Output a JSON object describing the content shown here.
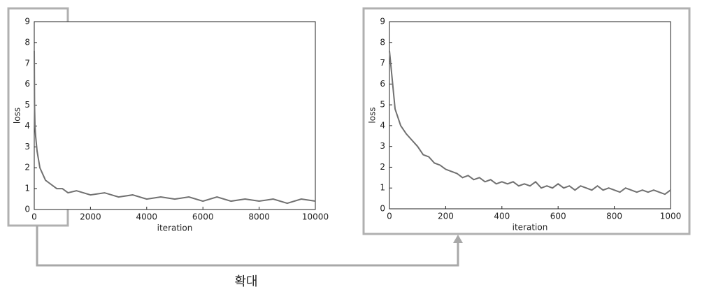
{
  "chart_data": [
    {
      "type": "line",
      "xlabel": "iteration",
      "ylabel": "loss",
      "color": "#707070",
      "xlim": [
        0,
        10000
      ],
      "ylim": [
        0,
        9
      ],
      "xticks": [
        0,
        2000,
        4000,
        6000,
        8000,
        10000
      ],
      "yticks": [
        0,
        1,
        2,
        3,
        4,
        5,
        6,
        7,
        8,
        9
      ],
      "x": [
        0,
        10,
        25,
        50,
        100,
        150,
        200,
        300,
        400,
        600,
        800,
        1000,
        1200,
        1500,
        2000,
        2500,
        3000,
        3500,
        4000,
        4500,
        5000,
        5500,
        6000,
        6500,
        7000,
        7500,
        8000,
        8500,
        9000,
        9500,
        10000
      ],
      "values": [
        7.6,
        5.0,
        4.0,
        3.5,
        2.8,
        2.4,
        2.0,
        1.7,
        1.4,
        1.2,
        1.0,
        1.0,
        0.8,
        0.9,
        0.7,
        0.8,
        0.6,
        0.7,
        0.5,
        0.6,
        0.5,
        0.6,
        0.4,
        0.6,
        0.4,
        0.5,
        0.4,
        0.5,
        0.3,
        0.5,
        0.4
      ]
    },
    {
      "type": "line",
      "xlabel": "iteration",
      "ylabel": "loss",
      "color": "#707070",
      "xlim": [
        0,
        1000
      ],
      "ylim": [
        0,
        9
      ],
      "xticks": [
        0,
        200,
        400,
        600,
        800,
        1000
      ],
      "yticks": [
        0,
        1,
        2,
        3,
        4,
        5,
        6,
        7,
        8,
        9
      ],
      "x": [
        0,
        20,
        40,
        60,
        80,
        100,
        120,
        140,
        160,
        180,
        200,
        220,
        240,
        260,
        280,
        300,
        320,
        340,
        360,
        380,
        400,
        420,
        440,
        460,
        480,
        500,
        520,
        540,
        560,
        580,
        600,
        620,
        640,
        660,
        680,
        700,
        720,
        740,
        760,
        780,
        800,
        820,
        840,
        860,
        880,
        900,
        920,
        940,
        960,
        980,
        1000
      ],
      "values": [
        7.6,
        4.8,
        4.0,
        3.6,
        3.3,
        3.0,
        2.6,
        2.5,
        2.2,
        2.1,
        1.9,
        1.8,
        1.7,
        1.5,
        1.6,
        1.4,
        1.5,
        1.3,
        1.4,
        1.2,
        1.3,
        1.2,
        1.3,
        1.1,
        1.2,
        1.1,
        1.3,
        1.0,
        1.1,
        1.0,
        1.2,
        1.0,
        1.1,
        0.9,
        1.1,
        1.0,
        0.9,
        1.1,
        0.9,
        1.0,
        0.9,
        0.8,
        1.0,
        0.9,
        0.8,
        0.9,
        0.8,
        0.9,
        0.8,
        0.7,
        0.9
      ]
    }
  ],
  "annotation": "확대"
}
